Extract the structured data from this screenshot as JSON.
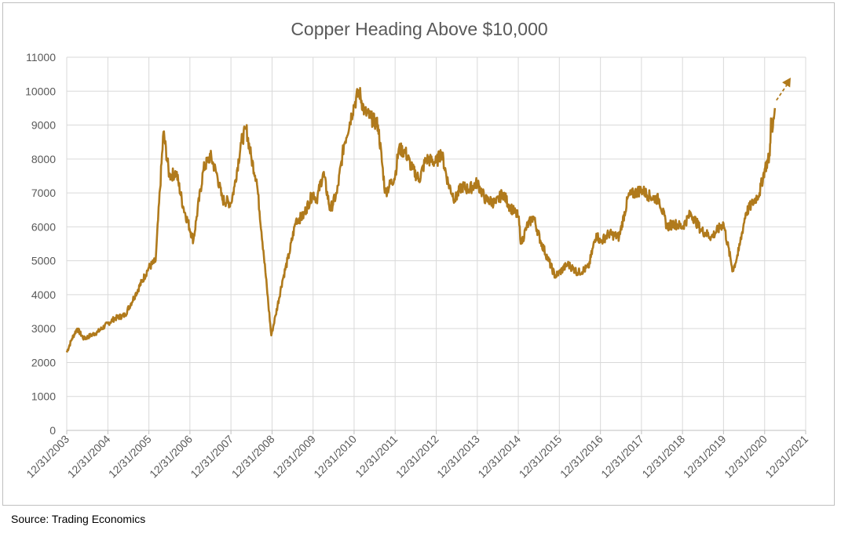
{
  "chart_data": {
    "type": "line",
    "title": "Copper Heading Above $10,000",
    "xlabel": "",
    "ylabel": "",
    "ylim": [
      0,
      11000
    ],
    "y_ticks": [
      "0",
      "1000",
      "2000",
      "3000",
      "4000",
      "5000",
      "6000",
      "7000",
      "8000",
      "9000",
      "10000",
      "11000"
    ],
    "x_ticks": [
      "12/31/2003",
      "12/31/2004",
      "12/31/2005",
      "12/31/2006",
      "12/31/2007",
      "12/31/2008",
      "12/31/2009",
      "12/31/2010",
      "12/31/2011",
      "12/31/2012",
      "12/31/2013",
      "12/31/2014",
      "12/31/2015",
      "12/31/2016",
      "12/31/2017",
      "12/31/2018",
      "12/31/2019",
      "12/31/2020",
      "12/31/2021"
    ],
    "grid": true,
    "legend": "none",
    "series_color": "#b07a1c",
    "series": [
      {
        "x": [
          "2003-12-31",
          "2004-02-15",
          "2004-04-01",
          "2004-06-01",
          "2004-08-01",
          "2004-10-01",
          "2004-12-31",
          "2005-03-01",
          "2005-06-01",
          "2005-09-01",
          "2005-12-31",
          "2006-03-01",
          "2006-05-10",
          "2006-07-01",
          "2006-09-01",
          "2006-11-01",
          "2007-01-31",
          "2007-03-01",
          "2007-05-01",
          "2007-07-01",
          "2007-09-01",
          "2007-10-15",
          "2007-12-31",
          "2008-02-01",
          "2008-04-01",
          "2008-05-15",
          "2008-07-01",
          "2008-08-15",
          "2008-10-15",
          "2008-12-24",
          "2009-02-01",
          "2009-04-01",
          "2009-06-01",
          "2009-08-01",
          "2009-10-01",
          "2009-12-31",
          "2010-02-01",
          "2010-04-01",
          "2010-06-01",
          "2010-08-01",
          "2010-10-01",
          "2010-12-31",
          "2011-02-14",
          "2011-04-01",
          "2011-06-01",
          "2011-08-01",
          "2011-10-04",
          "2011-12-31",
          "2012-02-01",
          "2012-04-01",
          "2012-06-01",
          "2012-08-01",
          "2012-10-01",
          "2012-12-31",
          "2013-02-15",
          "2013-04-15",
          "2013-06-15",
          "2013-08-15",
          "2013-10-15",
          "2013-12-31",
          "2014-03-15",
          "2014-06-15",
          "2014-08-15",
          "2014-10-15",
          "2014-12-31",
          "2015-01-26",
          "2015-03-15",
          "2015-05-15",
          "2015-07-15",
          "2015-09-15",
          "2015-11-23",
          "2015-12-31",
          "2016-03-15",
          "2016-06-15",
          "2016-09-15",
          "2016-11-25",
          "2016-12-31",
          "2017-03-15",
          "2017-06-15",
          "2017-09-05",
          "2017-12-31",
          "2018-03-15",
          "2018-06-07",
          "2018-08-15",
          "2018-10-15",
          "2018-12-31",
          "2019-03-15",
          "2019-06-15",
          "2019-09-15",
          "2019-12-31",
          "2020-03-23",
          "2020-05-15",
          "2020-07-15",
          "2020-09-15",
          "2020-11-15",
          "2020-12-31",
          "2021-02-15",
          "2021-02-25",
          "2021-03-10",
          "2021-04-01"
        ],
        "y": [
          2300,
          2700,
          3000,
          2700,
          2800,
          2900,
          3150,
          3300,
          3400,
          4000,
          4800,
          5000,
          8800,
          7500,
          7600,
          6600,
          5600,
          6300,
          7700,
          8100,
          7500,
          6800,
          6700,
          7200,
          8500,
          8900,
          8000,
          7400,
          5300,
          2800,
          3400,
          4400,
          5200,
          6200,
          6300,
          7000,
          6800,
          7600,
          6500,
          7000,
          8400,
          9600,
          10000,
          9400,
          9200,
          9000,
          7000,
          7500,
          8300,
          8200,
          7700,
          7400,
          8000,
          7900,
          8200,
          7300,
          6800,
          7200,
          7100,
          7300,
          6800,
          6700,
          7000,
          6600,
          6300,
          5500,
          6000,
          6300,
          5600,
          5100,
          4550,
          4650,
          4900,
          4650,
          4800,
          5800,
          5550,
          5800,
          5700,
          6900,
          7100,
          6900,
          6800,
          6000,
          6100,
          6000,
          6400,
          5900,
          5700,
          6100,
          4700,
          5300,
          6400,
          6700,
          7000,
          7700,
          8100,
          9200,
          8800,
          9500
        ]
      }
    ],
    "annotation": "dashed-arrow toward 10000+",
    "source": "Source: Trading Economics"
  }
}
